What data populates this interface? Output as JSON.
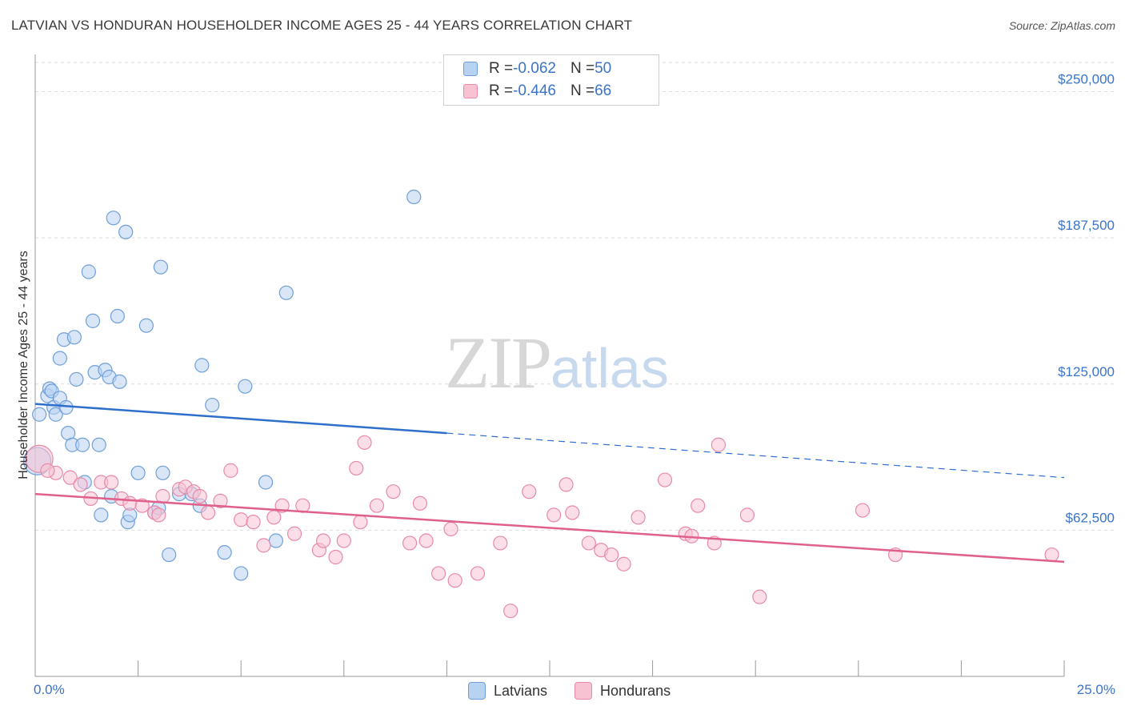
{
  "header": {
    "title": "LATVIAN VS HONDURAN HOUSEHOLDER INCOME AGES 25 - 44 YEARS CORRELATION CHART",
    "source": "Source: ZipAtlas.com"
  },
  "watermark": {
    "zip": "ZIP",
    "atlas": "atlas"
  },
  "legend_top": {
    "rows": [
      {
        "r_label": "R = ",
        "r_value": "-0.062",
        "n_label": "N = ",
        "n_value": "50"
      },
      {
        "r_label": "R = ",
        "r_value": "-0.446",
        "n_label": "N = ",
        "n_value": "66"
      }
    ]
  },
  "legend_bottom": {
    "items": [
      "Latvians",
      "Hondurans"
    ]
  },
  "axis": {
    "x_min_label": "0.0%",
    "x_max_label": "25.0%",
    "y_label": "Householder Income Ages 25 - 44 years"
  },
  "colors": {
    "latvian_fill": "#b8d2f2",
    "latvian_stroke": "#6f9fd8",
    "latvian_line": "#2f6fcc",
    "honduran_fill": "#f7c3d3",
    "honduran_stroke": "#e88aa7",
    "honduran_line": "#e0608c",
    "tick_label": "#3a74c9"
  },
  "chart_data": {
    "type": "scatter",
    "title": "LATVIAN VS HONDURAN HOUSEHOLDER INCOME AGES 25 - 44 YEARS CORRELATION CHART",
    "xlabel": "",
    "ylabel": "Householder Income Ages 25 - 44 years",
    "xlim": [
      0,
      25
    ],
    "ylim": [
      0,
      262500
    ],
    "y_ticks": [
      {
        "value": 62500,
        "label": "$62,500"
      },
      {
        "value": 125000,
        "label": "$125,000"
      },
      {
        "value": 187500,
        "label": "$187,500"
      },
      {
        "value": 250000,
        "label": "$250,000"
      }
    ],
    "grid": true,
    "legend_position": "top-center",
    "series": [
      {
        "name": "Latvians",
        "points": [
          [
            0.1,
            112000
          ],
          [
            0.3,
            120000
          ],
          [
            0.35,
            123000
          ],
          [
            0.4,
            122000
          ],
          [
            0.45,
            115000
          ],
          [
            0.5,
            112000
          ],
          [
            0.6,
            136000
          ],
          [
            0.6,
            119000
          ],
          [
            0.7,
            144000
          ],
          [
            0.75,
            115000
          ],
          [
            0.8,
            104000
          ],
          [
            0.9,
            99000
          ],
          [
            0.95,
            145000
          ],
          [
            1.0,
            127000
          ],
          [
            1.15,
            99000
          ],
          [
            1.2,
            83000
          ],
          [
            1.3,
            173000
          ],
          [
            1.4,
            152000
          ],
          [
            1.45,
            130000
          ],
          [
            1.55,
            99000
          ],
          [
            1.6,
            69000
          ],
          [
            1.7,
            131000
          ],
          [
            1.8,
            128000
          ],
          [
            1.85,
            77000
          ],
          [
            1.9,
            196000
          ],
          [
            2.0,
            154000
          ],
          [
            2.05,
            126000
          ],
          [
            2.2,
            190000
          ],
          [
            2.25,
            66000
          ],
          [
            2.3,
            69000
          ],
          [
            2.5,
            87000
          ],
          [
            2.7,
            150000
          ],
          [
            2.9,
            70000
          ],
          [
            3.0,
            72000
          ],
          [
            3.05,
            175000
          ],
          [
            3.1,
            87000
          ],
          [
            3.25,
            52000
          ],
          [
            3.5,
            78000
          ],
          [
            3.8,
            78000
          ],
          [
            4.0,
            73000
          ],
          [
            4.05,
            133000
          ],
          [
            4.3,
            116000
          ],
          [
            4.6,
            53000
          ],
          [
            5.0,
            44000
          ],
          [
            5.1,
            124000
          ],
          [
            5.6,
            83000
          ],
          [
            5.85,
            58000
          ],
          [
            6.1,
            164000
          ],
          [
            9.2,
            205000
          ],
          [
            0.05,
            92000
          ]
        ],
        "trend": {
          "x": [
            0,
            10
          ],
          "y": [
            116500,
            104000
          ],
          "dashed_extension": {
            "x": [
              10,
              25
            ],
            "y": [
              104000,
              85000
            ]
          }
        }
      },
      {
        "name": "Hondurans",
        "points": [
          [
            0.1,
            93000
          ],
          [
            0.5,
            87000
          ],
          [
            0.85,
            85000
          ],
          [
            1.1,
            82000
          ],
          [
            1.35,
            76000
          ],
          [
            1.6,
            83000
          ],
          [
            1.85,
            83000
          ],
          [
            2.1,
            76000
          ],
          [
            2.3,
            74000
          ],
          [
            2.6,
            73000
          ],
          [
            2.9,
            70000
          ],
          [
            3.0,
            69000
          ],
          [
            3.1,
            77000
          ],
          [
            3.5,
            80000
          ],
          [
            3.65,
            81000
          ],
          [
            3.85,
            79000
          ],
          [
            4.0,
            77000
          ],
          [
            4.2,
            70000
          ],
          [
            4.5,
            75000
          ],
          [
            4.75,
            88000
          ],
          [
            5.0,
            67000
          ],
          [
            5.3,
            66000
          ],
          [
            5.55,
            56000
          ],
          [
            5.8,
            68000
          ],
          [
            6.0,
            73000
          ],
          [
            6.3,
            61000
          ],
          [
            6.5,
            73000
          ],
          [
            6.9,
            54000
          ],
          [
            7.0,
            58000
          ],
          [
            7.3,
            51000
          ],
          [
            7.5,
            58000
          ],
          [
            7.8,
            89000
          ],
          [
            7.9,
            66000
          ],
          [
            8.0,
            100000
          ],
          [
            8.3,
            73000
          ],
          [
            8.7,
            79000
          ],
          [
            9.1,
            57000
          ],
          [
            9.35,
            74000
          ],
          [
            9.5,
            58000
          ],
          [
            9.8,
            44000
          ],
          [
            10.1,
            63000
          ],
          [
            10.2,
            41000
          ],
          [
            10.75,
            44000
          ],
          [
            11.3,
            57000
          ],
          [
            11.55,
            28000
          ],
          [
            12.0,
            79000
          ],
          [
            12.6,
            69000
          ],
          [
            12.9,
            82000
          ],
          [
            13.05,
            70000
          ],
          [
            13.45,
            57000
          ],
          [
            13.75,
            54000
          ],
          [
            14.0,
            52000
          ],
          [
            14.3,
            48000
          ],
          [
            14.65,
            68000
          ],
          [
            15.3,
            84000
          ],
          [
            15.8,
            61000
          ],
          [
            15.95,
            60000
          ],
          [
            16.1,
            73000
          ],
          [
            16.5,
            57000
          ],
          [
            16.6,
            99000
          ],
          [
            17.3,
            69000
          ],
          [
            17.6,
            34000
          ],
          [
            20.1,
            71000
          ],
          [
            20.9,
            52000
          ],
          [
            24.7,
            52000
          ],
          [
            0.3,
            88000
          ]
        ],
        "trend": {
          "x": [
            0,
            25
          ],
          "y": [
            78000,
            49000
          ]
        }
      }
    ]
  }
}
